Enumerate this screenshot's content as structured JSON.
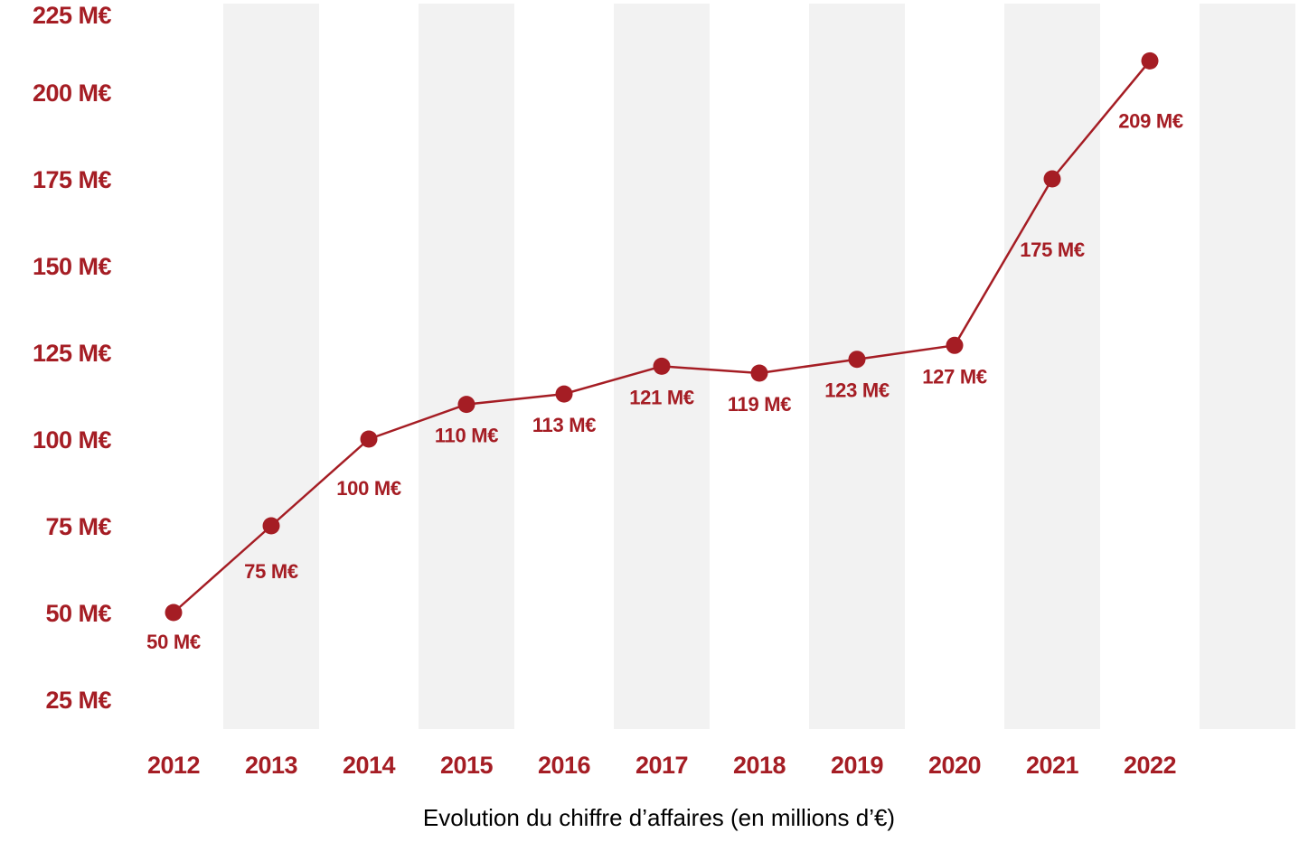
{
  "chart_data": {
    "type": "line",
    "title": "",
    "xlabel": "Evolution du chiffre d’affaires (en millions d’€)",
    "ylabel": "",
    "ylim": [
      25,
      225
    ],
    "y_ticks": [
      {
        "value": 225,
        "label": "225 M€"
      },
      {
        "value": 200,
        "label": "200 M€"
      },
      {
        "value": 175,
        "label": "175 M€"
      },
      {
        "value": 150,
        "label": "150 M€"
      },
      {
        "value": 125,
        "label": "125 M€"
      },
      {
        "value": 100,
        "label": "100 M€"
      },
      {
        "value": 75,
        "label": "75 M€"
      },
      {
        "value": 50,
        "label": "50 M€"
      },
      {
        "value": 25,
        "label": "25 M€"
      }
    ],
    "categories": [
      "2012",
      "2013",
      "2014",
      "2015",
      "2016",
      "2017",
      "2018",
      "2019",
      "2020",
      "2021",
      "2022"
    ],
    "series": [
      {
        "values": [
          50,
          75,
          100,
          110,
          113,
          121,
          119,
          123,
          127,
          175,
          209
        ],
        "labels": [
          "50 M€",
          "75 M€",
          "100 M€",
          "110 M€",
          "113 M€",
          "121 M€",
          "119 M€",
          "123 M€",
          "127 M€",
          "175 M€",
          "209 M€"
        ]
      }
    ],
    "grid": false,
    "legend": "none",
    "colors": {
      "accent": "#a51d24",
      "band": "#f2f2f2"
    }
  }
}
